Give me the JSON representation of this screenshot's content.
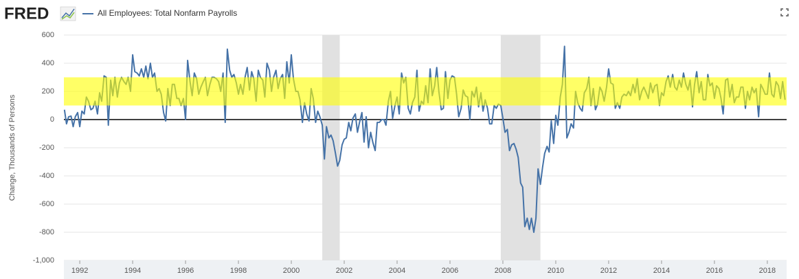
{
  "chart_data": {
    "type": "line",
    "logo": "FRED",
    "y_label": "Change, Thousands of Persons",
    "xlim": [
      1991.4,
      2018.73
    ],
    "xticks": [
      1992,
      1994,
      1996,
      1998,
      2000,
      2002,
      2004,
      2006,
      2008,
      2010,
      2012,
      2014,
      2016,
      2018
    ],
    "ylim": [
      -1000,
      600
    ],
    "yticks": [
      {
        "value": -1000,
        "label": "-1,000"
      },
      -800,
      -600,
      -400,
      -200,
      0,
      200,
      400,
      600
    ],
    "grid": true,
    "band": [
      100,
      300
    ],
    "band_color": "#ffff00",
    "recessions": [
      [
        2001.17,
        2001.83
      ],
      [
        2007.92,
        2009.42
      ]
    ],
    "x": [
      1991.42,
      1991.5,
      1991.58,
      1991.67,
      1991.75,
      1991.83,
      1991.92,
      1992,
      1992.08,
      1992.17,
      1992.25,
      1992.33,
      1992.42,
      1992.5,
      1992.58,
      1992.67,
      1992.75,
      1992.83,
      1992.92,
      1993,
      1993.08,
      1993.17,
      1993.25,
      1993.33,
      1993.42,
      1993.5,
      1993.58,
      1993.67,
      1993.75,
      1993.83,
      1993.92,
      1994,
      1994.08,
      1994.17,
      1994.25,
      1994.33,
      1994.42,
      1994.5,
      1994.58,
      1994.67,
      1994.75,
      1994.83,
      1994.92,
      1995,
      1995.08,
      1995.17,
      1995.25,
      1995.33,
      1995.42,
      1995.5,
      1995.58,
      1995.67,
      1995.75,
      1995.83,
      1995.92,
      1996,
      1996.08,
      1996.17,
      1996.25,
      1996.33,
      1996.42,
      1996.5,
      1996.58,
      1996.67,
      1996.75,
      1996.83,
      1996.92,
      1997,
      1997.08,
      1997.17,
      1997.25,
      1997.33,
      1997.42,
      1997.5,
      1997.58,
      1997.67,
      1997.75,
      1997.83,
      1997.92,
      1998,
      1998.08,
      1998.17,
      1998.25,
      1998.33,
      1998.42,
      1998.5,
      1998.58,
      1998.67,
      1998.75,
      1998.83,
      1998.92,
      1999,
      1999.08,
      1999.17,
      1999.25,
      1999.33,
      1999.42,
      1999.5,
      1999.58,
      1999.67,
      1999.75,
      1999.83,
      1999.92,
      2000,
      2000.08,
      2000.17,
      2000.25,
      2000.33,
      2000.42,
      2000.5,
      2000.58,
      2000.67,
      2000.75,
      2000.83,
      2000.92,
      2001,
      2001.08,
      2001.17,
      2001.25,
      2001.33,
      2001.42,
      2001.5,
      2001.58,
      2001.67,
      2001.75,
      2001.83,
      2001.92,
      2002,
      2002.08,
      2002.17,
      2002.25,
      2002.33,
      2002.42,
      2002.5,
      2002.58,
      2002.67,
      2002.75,
      2002.83,
      2002.92,
      2003,
      2003.08,
      2003.17,
      2003.25,
      2003.33,
      2003.42,
      2003.5,
      2003.58,
      2003.67,
      2003.75,
      2003.83,
      2003.92,
      2004,
      2004.08,
      2004.17,
      2004.25,
      2004.33,
      2004.42,
      2004.5,
      2004.58,
      2004.67,
      2004.75,
      2004.83,
      2004.92,
      2005,
      2005.08,
      2005.17,
      2005.25,
      2005.33,
      2005.42,
      2005.5,
      2005.58,
      2005.67,
      2005.75,
      2005.83,
      2005.92,
      2006,
      2006.08,
      2006.17,
      2006.25,
      2006.33,
      2006.42,
      2006.5,
      2006.58,
      2006.67,
      2006.75,
      2006.83,
      2006.92,
      2007,
      2007.08,
      2007.17,
      2007.25,
      2007.33,
      2007.42,
      2007.5,
      2007.58,
      2007.67,
      2007.75,
      2007.83,
      2007.92,
      2008,
      2008.08,
      2008.17,
      2008.25,
      2008.33,
      2008.42,
      2008.5,
      2008.58,
      2008.67,
      2008.75,
      2008.83,
      2008.92,
      2009,
      2009.08,
      2009.17,
      2009.25,
      2009.33,
      2009.42,
      2009.5,
      2009.58,
      2009.67,
      2009.75,
      2009.83,
      2009.92,
      2010,
      2010.08,
      2010.17,
      2010.25,
      2010.33,
      2010.42,
      2010.5,
      2010.58,
      2010.67,
      2010.75,
      2010.83,
      2010.92,
      2011,
      2011.08,
      2011.17,
      2011.25,
      2011.33,
      2011.42,
      2011.5,
      2011.58,
      2011.67,
      2011.75,
      2011.83,
      2011.92,
      2012,
      2012.08,
      2012.17,
      2012.25,
      2012.33,
      2012.42,
      2012.5,
      2012.58,
      2012.67,
      2012.75,
      2012.83,
      2012.92,
      2013,
      2013.08,
      2013.17,
      2013.25,
      2013.33,
      2013.42,
      2013.5,
      2013.58,
      2013.67,
      2013.75,
      2013.83,
      2013.92,
      2014,
      2014.08,
      2014.17,
      2014.25,
      2014.33,
      2014.42,
      2014.5,
      2014.58,
      2014.67,
      2014.75,
      2014.83,
      2014.92,
      2015,
      2015.08,
      2015.17,
      2015.25,
      2015.33,
      2015.42,
      2015.5,
      2015.58,
      2015.67,
      2015.75,
      2015.83,
      2015.92,
      2016,
      2016.08,
      2016.17,
      2016.25,
      2016.33,
      2016.42,
      2016.5,
      2016.58,
      2016.67,
      2016.75,
      2016.83,
      2016.92,
      2017,
      2017.08,
      2017.17,
      2017.25,
      2017.33,
      2017.42,
      2017.5,
      2017.58,
      2017.67,
      2017.75,
      2017.83,
      2017.92,
      2018,
      2018.08,
      2018.17,
      2018.25,
      2018.33,
      2018.42,
      2018.5,
      2018.58,
      2018.67
    ],
    "series": [
      {
        "name": "All Employees: Total Nonfarm Payrolls",
        "color": "#4572a7",
        "values": [
          70,
          -30,
          20,
          25,
          -50,
          20,
          50,
          -50,
          60,
          40,
          160,
          130,
          70,
          80,
          130,
          40,
          190,
          130,
          310,
          300,
          -40,
          280,
          170,
          300,
          160,
          260,
          300,
          270,
          250,
          300,
          200,
          460,
          340,
          330,
          310,
          360,
          300,
          380,
          290,
          400,
          300,
          330,
          200,
          220,
          180,
          50,
          -10,
          220,
          100,
          250,
          250,
          150,
          150,
          100,
          150,
          0,
          420,
          270,
          170,
          330,
          290,
          180,
          230,
          270,
          300,
          170,
          250,
          300,
          300,
          290,
          270,
          200,
          330,
          -20,
          500,
          350,
          300,
          320,
          260,
          180,
          250,
          180,
          300,
          370,
          210,
          340,
          290,
          130,
          350,
          300,
          280,
          160,
          400,
          350,
          200,
          300,
          350,
          220,
          290,
          320,
          150,
          410,
          260,
          460,
          290,
          200,
          200,
          140,
          -20,
          120,
          40,
          -10,
          220,
          150,
          -20,
          60,
          20,
          -40,
          -280,
          -50,
          -130,
          -110,
          -150,
          -240,
          -330,
          -290,
          -180,
          -140,
          -130,
          -20,
          -80,
          10,
          40,
          -90,
          -20,
          50,
          -160,
          20,
          -200,
          -90,
          -160,
          -220,
          -20,
          -20,
          0,
          0,
          -40,
          130,
          200,
          10,
          100,
          160,
          40,
          330,
          260,
          300,
          80,
          40,
          120,
          160,
          350,
          60,
          130,
          110,
          240,
          120,
          360,
          170,
          240,
          370,
          200,
          70,
          80,
          340,
          150,
          280,
          310,
          300,
          180,
          20,
          80,
          210,
          170,
          160,
          0,
          200,
          160,
          230,
          90,
          190,
          60,
          140,
          80,
          -30,
          -30,
          100,
          80,
          110,
          100,
          10,
          -90,
          -70,
          -220,
          -180,
          -170,
          -210,
          -270,
          -450,
          -480,
          -760,
          -700,
          -780,
          -700,
          -800,
          -700,
          -350,
          -460,
          -340,
          -240,
          -190,
          -230,
          -10,
          -170,
          30,
          -40,
          160,
          250,
          520,
          -130,
          -90,
          -30,
          -60,
          200,
          120,
          80,
          60,
          190,
          220,
          300,
          100,
          220,
          70,
          110,
          230,
          200,
          130,
          230,
          360,
          260,
          250,
          80,
          120,
          80,
          160,
          180,
          170,
          200,
          170,
          250,
          190,
          290,
          140,
          200,
          230,
          190,
          150,
          260,
          190,
          240,
          250,
          100,
          190,
          170,
          270,
          310,
          230,
          320,
          230,
          210,
          280,
          230,
          330,
          250,
          210,
          280,
          90,
          250,
          340,
          190,
          270,
          140,
          140,
          320,
          240,
          260,
          150,
          240,
          220,
          150,
          40,
          280,
          290,
          160,
          250,
          120,
          160,
          160,
          230,
          230,
          80,
          200,
          140,
          230,
          190,
          220,
          20,
          250,
          220,
          180,
          180,
          330,
          180,
          160,
          270,
          240,
          150,
          270,
          140
        ]
      }
    ]
  }
}
